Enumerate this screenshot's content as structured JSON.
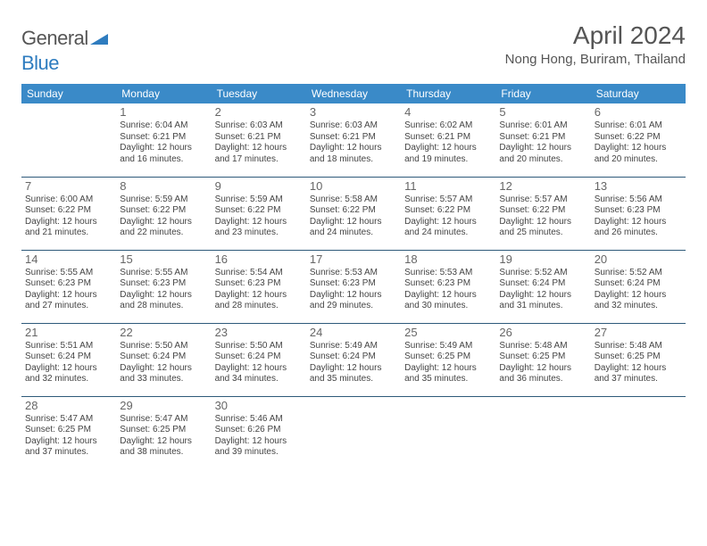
{
  "logo": {
    "text1": "General",
    "text2": "Blue"
  },
  "title": "April 2024",
  "location": "Nong Hong, Buriram, Thailand",
  "colors": {
    "header_bg": "#3a8ac8",
    "border": "#2e5a7a",
    "text": "#444444"
  },
  "weekdays": [
    "Sunday",
    "Monday",
    "Tuesday",
    "Wednesday",
    "Thursday",
    "Friday",
    "Saturday"
  ],
  "weeks": [
    [
      null,
      {
        "n": "1",
        "sr": "Sunrise: 6:04 AM",
        "ss": "Sunset: 6:21 PM",
        "d1": "Daylight: 12 hours",
        "d2": "and 16 minutes."
      },
      {
        "n": "2",
        "sr": "Sunrise: 6:03 AM",
        "ss": "Sunset: 6:21 PM",
        "d1": "Daylight: 12 hours",
        "d2": "and 17 minutes."
      },
      {
        "n": "3",
        "sr": "Sunrise: 6:03 AM",
        "ss": "Sunset: 6:21 PM",
        "d1": "Daylight: 12 hours",
        "d2": "and 18 minutes."
      },
      {
        "n": "4",
        "sr": "Sunrise: 6:02 AM",
        "ss": "Sunset: 6:21 PM",
        "d1": "Daylight: 12 hours",
        "d2": "and 19 minutes."
      },
      {
        "n": "5",
        "sr": "Sunrise: 6:01 AM",
        "ss": "Sunset: 6:21 PM",
        "d1": "Daylight: 12 hours",
        "d2": "and 20 minutes."
      },
      {
        "n": "6",
        "sr": "Sunrise: 6:01 AM",
        "ss": "Sunset: 6:22 PM",
        "d1": "Daylight: 12 hours",
        "d2": "and 20 minutes."
      }
    ],
    [
      {
        "n": "7",
        "sr": "Sunrise: 6:00 AM",
        "ss": "Sunset: 6:22 PM",
        "d1": "Daylight: 12 hours",
        "d2": "and 21 minutes."
      },
      {
        "n": "8",
        "sr": "Sunrise: 5:59 AM",
        "ss": "Sunset: 6:22 PM",
        "d1": "Daylight: 12 hours",
        "d2": "and 22 minutes."
      },
      {
        "n": "9",
        "sr": "Sunrise: 5:59 AM",
        "ss": "Sunset: 6:22 PM",
        "d1": "Daylight: 12 hours",
        "d2": "and 23 minutes."
      },
      {
        "n": "10",
        "sr": "Sunrise: 5:58 AM",
        "ss": "Sunset: 6:22 PM",
        "d1": "Daylight: 12 hours",
        "d2": "and 24 minutes."
      },
      {
        "n": "11",
        "sr": "Sunrise: 5:57 AM",
        "ss": "Sunset: 6:22 PM",
        "d1": "Daylight: 12 hours",
        "d2": "and 24 minutes."
      },
      {
        "n": "12",
        "sr": "Sunrise: 5:57 AM",
        "ss": "Sunset: 6:22 PM",
        "d1": "Daylight: 12 hours",
        "d2": "and 25 minutes."
      },
      {
        "n": "13",
        "sr": "Sunrise: 5:56 AM",
        "ss": "Sunset: 6:23 PM",
        "d1": "Daylight: 12 hours",
        "d2": "and 26 minutes."
      }
    ],
    [
      {
        "n": "14",
        "sr": "Sunrise: 5:55 AM",
        "ss": "Sunset: 6:23 PM",
        "d1": "Daylight: 12 hours",
        "d2": "and 27 minutes."
      },
      {
        "n": "15",
        "sr": "Sunrise: 5:55 AM",
        "ss": "Sunset: 6:23 PM",
        "d1": "Daylight: 12 hours",
        "d2": "and 28 minutes."
      },
      {
        "n": "16",
        "sr": "Sunrise: 5:54 AM",
        "ss": "Sunset: 6:23 PM",
        "d1": "Daylight: 12 hours",
        "d2": "and 28 minutes."
      },
      {
        "n": "17",
        "sr": "Sunrise: 5:53 AM",
        "ss": "Sunset: 6:23 PM",
        "d1": "Daylight: 12 hours",
        "d2": "and 29 minutes."
      },
      {
        "n": "18",
        "sr": "Sunrise: 5:53 AM",
        "ss": "Sunset: 6:23 PM",
        "d1": "Daylight: 12 hours",
        "d2": "and 30 minutes."
      },
      {
        "n": "19",
        "sr": "Sunrise: 5:52 AM",
        "ss": "Sunset: 6:24 PM",
        "d1": "Daylight: 12 hours",
        "d2": "and 31 minutes."
      },
      {
        "n": "20",
        "sr": "Sunrise: 5:52 AM",
        "ss": "Sunset: 6:24 PM",
        "d1": "Daylight: 12 hours",
        "d2": "and 32 minutes."
      }
    ],
    [
      {
        "n": "21",
        "sr": "Sunrise: 5:51 AM",
        "ss": "Sunset: 6:24 PM",
        "d1": "Daylight: 12 hours",
        "d2": "and 32 minutes."
      },
      {
        "n": "22",
        "sr": "Sunrise: 5:50 AM",
        "ss": "Sunset: 6:24 PM",
        "d1": "Daylight: 12 hours",
        "d2": "and 33 minutes."
      },
      {
        "n": "23",
        "sr": "Sunrise: 5:50 AM",
        "ss": "Sunset: 6:24 PM",
        "d1": "Daylight: 12 hours",
        "d2": "and 34 minutes."
      },
      {
        "n": "24",
        "sr": "Sunrise: 5:49 AM",
        "ss": "Sunset: 6:24 PM",
        "d1": "Daylight: 12 hours",
        "d2": "and 35 minutes."
      },
      {
        "n": "25",
        "sr": "Sunrise: 5:49 AM",
        "ss": "Sunset: 6:25 PM",
        "d1": "Daylight: 12 hours",
        "d2": "and 35 minutes."
      },
      {
        "n": "26",
        "sr": "Sunrise: 5:48 AM",
        "ss": "Sunset: 6:25 PM",
        "d1": "Daylight: 12 hours",
        "d2": "and 36 minutes."
      },
      {
        "n": "27",
        "sr": "Sunrise: 5:48 AM",
        "ss": "Sunset: 6:25 PM",
        "d1": "Daylight: 12 hours",
        "d2": "and 37 minutes."
      }
    ],
    [
      {
        "n": "28",
        "sr": "Sunrise: 5:47 AM",
        "ss": "Sunset: 6:25 PM",
        "d1": "Daylight: 12 hours",
        "d2": "and 37 minutes."
      },
      {
        "n": "29",
        "sr": "Sunrise: 5:47 AM",
        "ss": "Sunset: 6:25 PM",
        "d1": "Daylight: 12 hours",
        "d2": "and 38 minutes."
      },
      {
        "n": "30",
        "sr": "Sunrise: 5:46 AM",
        "ss": "Sunset: 6:26 PM",
        "d1": "Daylight: 12 hours",
        "d2": "and 39 minutes."
      },
      null,
      null,
      null,
      null
    ]
  ]
}
